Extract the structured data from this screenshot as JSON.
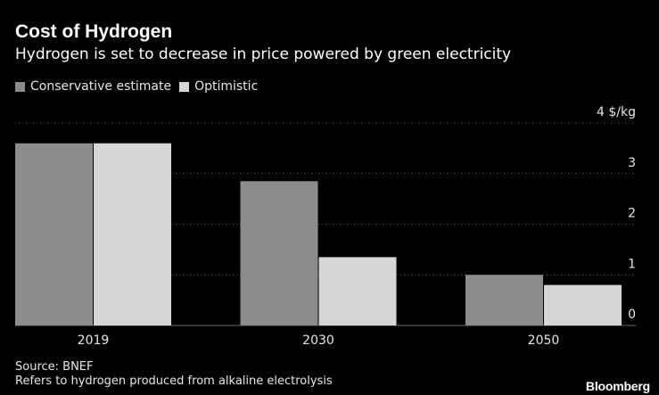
{
  "header": {
    "title": "Cost of Hydrogen",
    "subtitle": "Hydrogen is set to decrease in price powered by green electricity"
  },
  "footer": {
    "source": "Source: BNEF",
    "note": "Refers to hydrogen produced from alkaline electrolysis",
    "brand": "Bloomberg"
  },
  "colors": {
    "background": "#000000",
    "conservative": "#8c8c8c",
    "optimistic": "#d6d6d6",
    "gridline": "#666666",
    "text": "#e6e6e6"
  },
  "chart_data": {
    "type": "bar",
    "title": "Cost of Hydrogen",
    "subtitle": "Hydrogen is set to decrease in price powered by green electricity",
    "categories": [
      "2019",
      "2030",
      "2050"
    ],
    "series": [
      {
        "name": "Conservative estimate",
        "values": [
          3.6,
          2.85,
          1.0
        ]
      },
      {
        "name": "Optimistic",
        "values": [
          3.6,
          1.35,
          0.8
        ]
      }
    ],
    "ylim": [
      0,
      4
    ],
    "yticks": [
      0,
      1,
      2,
      3,
      4
    ],
    "ytick_labels": [
      "0",
      "1",
      "2",
      "3",
      "4 $/kg"
    ],
    "yunit": "$/kg",
    "grid": true,
    "legend_position": "top-left",
    "yaxis_position": "right"
  }
}
